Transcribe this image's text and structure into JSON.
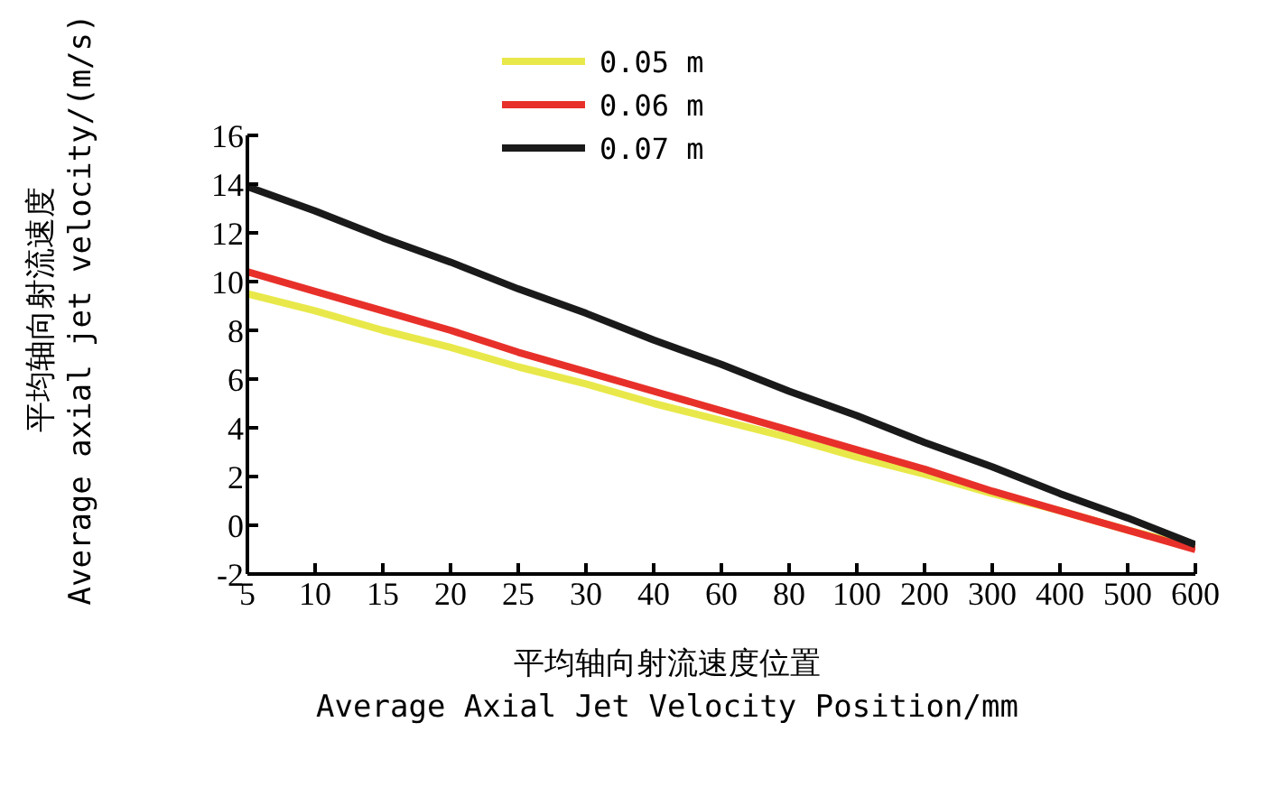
{
  "chart_data": {
    "type": "line",
    "xlabel": "平均轴向射流速度位置\nAverage Axial Jet Velocity Position/mm",
    "ylabel": "平均轴向射流速度\nAverage axial jet velocity/(m/s)",
    "categories": [
      "5",
      "10",
      "15",
      "20",
      "25",
      "30",
      "40",
      "60",
      "80",
      "100",
      "200",
      "300",
      "400",
      "500",
      "600"
    ],
    "series": [
      {
        "name": "0.05 m",
        "color": "#e8e84a",
        "values": [
          9.5,
          8.8,
          8.0,
          7.3,
          6.5,
          5.8,
          5.0,
          4.3,
          3.6,
          2.8,
          2.1,
          1.3,
          0.6,
          -0.2,
          -0.9
        ]
      },
      {
        "name": "0.06 m",
        "color": "#e8302a",
        "values": [
          10.4,
          9.6,
          8.8,
          8.0,
          7.1,
          6.3,
          5.5,
          4.7,
          3.9,
          3.1,
          2.3,
          1.4,
          0.6,
          -0.2,
          -1.0
        ]
      },
      {
        "name": "0.07 m",
        "color": "#1a1a1a",
        "values": [
          13.9,
          12.9,
          11.8,
          10.8,
          9.7,
          8.7,
          7.6,
          6.6,
          5.5,
          4.5,
          3.4,
          2.4,
          1.3,
          0.3,
          -0.8
        ]
      }
    ],
    "ylim": [
      -2,
      16
    ],
    "yticks": [
      -2,
      0,
      2,
      4,
      6,
      8,
      10,
      12,
      14,
      16
    ],
    "grid": false,
    "legend": "top",
    "marker": "none",
    "line_style": "solid"
  }
}
